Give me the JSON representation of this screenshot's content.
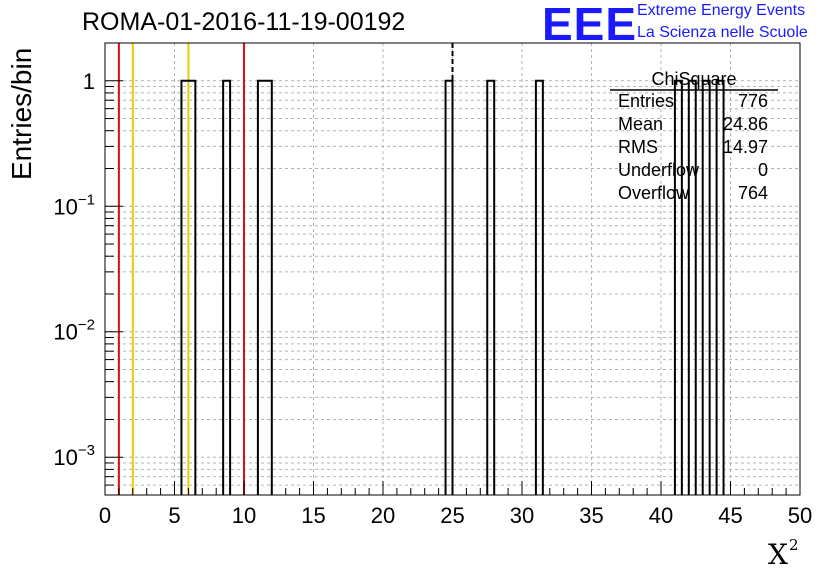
{
  "header": {
    "title": "ROMA-01-2016-11-19-00192",
    "logo_text": "EEE",
    "logo_line1": "Extreme Energy Events",
    "logo_line2": "La Scienza nelle Scuole"
  },
  "stats_box": {
    "title": "ChiSquare",
    "rows": [
      {
        "label": "Entries",
        "value": "776"
      },
      {
        "label": "Mean",
        "value": "24.86"
      },
      {
        "label": "RMS",
        "value": "14.97"
      },
      {
        "label": "Underflow",
        "value": "0"
      },
      {
        "label": "Overflow",
        "value": "764"
      }
    ]
  },
  "colors": {
    "red_line": "#dd1111",
    "yellow_line": "#f2c600",
    "histogram": "#000000",
    "grid": "#b4b4b4",
    "logo": "#1a1aff"
  },
  "chart_data": {
    "type": "histogram",
    "title": "ROMA-01-2016-11-19-00192",
    "xlabel": "X",
    "xlabel_superscript": "2",
    "ylabel": "Entries/bin",
    "xlim": [
      0,
      50
    ],
    "ylim": [
      0.0005,
      2
    ],
    "yscale": "log",
    "grid": true,
    "bin_width": 1,
    "bins_with_entries": [
      {
        "x0": 5.5,
        "x1": 6.5,
        "count": 1
      },
      {
        "x0": 8.5,
        "x1": 9.0,
        "count": 1
      },
      {
        "x0": 11.0,
        "x1": 12.0,
        "count": 1
      },
      {
        "x0": 24.5,
        "x1": 25.0,
        "count": 1
      },
      {
        "x0": 27.5,
        "x1": 28.0,
        "count": 1
      },
      {
        "x0": 31.0,
        "x1": 31.5,
        "count": 1
      },
      {
        "x0": 41.0,
        "x1": 41.5,
        "count": 1
      },
      {
        "x0": 42.0,
        "x1": 42.5,
        "count": 1
      },
      {
        "x0": 43.0,
        "x1": 43.5,
        "count": 1
      },
      {
        "x0": 44.0,
        "x1": 44.5,
        "count": 1
      }
    ],
    "xticks": [
      "0",
      "5",
      "10",
      "15",
      "20",
      "25",
      "30",
      "35",
      "40",
      "45",
      "50"
    ],
    "yticks": [
      {
        "value": 1,
        "base": "1",
        "exp": ""
      },
      {
        "value": 0.1,
        "base": "10",
        "exp": "−1"
      },
      {
        "value": 0.01,
        "base": "10",
        "exp": "−2"
      },
      {
        "value": 0.001,
        "base": "10",
        "exp": "−3"
      }
    ],
    "vertical_lines": [
      {
        "x": 1,
        "color": "red"
      },
      {
        "x": 2,
        "color": "yellow"
      },
      {
        "x": 6,
        "color": "yellow"
      },
      {
        "x": 10,
        "color": "red"
      },
      {
        "x": 25,
        "color": "black",
        "style": "dashed"
      }
    ]
  }
}
